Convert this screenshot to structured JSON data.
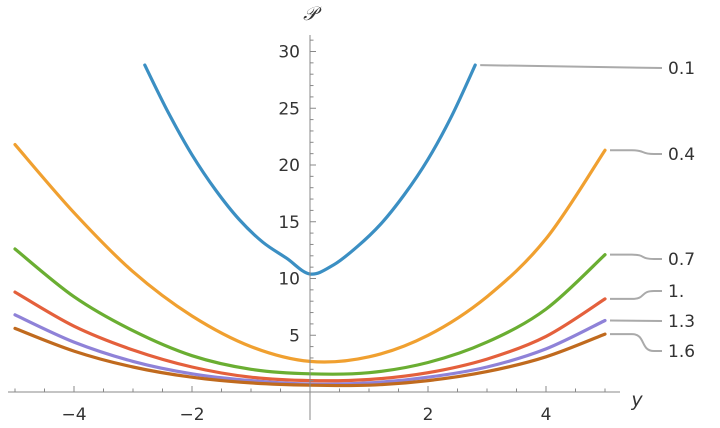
{
  "chart_data": {
    "type": "line",
    "title": "",
    "xlabel": "y",
    "ylabel": "𝒫",
    "xlim": [
      -5,
      5
    ],
    "ylim": [
      0,
      32
    ],
    "xticks": [
      {
        "value": -4,
        "label": "−4"
      },
      {
        "value": -2,
        "label": "−2"
      },
      {
        "value": 2,
        "label": "2"
      },
      {
        "value": 4,
        "label": "4"
      }
    ],
    "yticks": [
      {
        "value": 5,
        "label": "5"
      },
      {
        "value": 10,
        "label": "10"
      },
      {
        "value": 15,
        "label": "15"
      },
      {
        "value": 20,
        "label": "20"
      },
      {
        "value": 25,
        "label": "25"
      },
      {
        "value": 30,
        "label": "30"
      }
    ],
    "series": [
      {
        "name": "0.1",
        "color": "#3B8FC3",
        "x": [
          -2.8,
          -2.4,
          -2.0,
          -1.6,
          -1.2,
          -0.8,
          -0.4,
          0.0,
          0.4,
          0.8,
          1.2,
          1.6,
          2.0,
          2.4,
          2.8
        ],
        "y": [
          28.8,
          24.6,
          20.9,
          17.8,
          15.2,
          13.2,
          11.8,
          10.4,
          11.2,
          12.8,
          14.8,
          17.4,
          20.5,
          24.3,
          28.8
        ]
      },
      {
        "name": "0.4",
        "color": "#F0A030",
        "x": [
          -5,
          -4,
          -3,
          -2,
          -1,
          0,
          1,
          2,
          3,
          4,
          5
        ],
        "y": [
          21.8,
          15.8,
          10.6,
          6.7,
          4.0,
          2.7,
          3.1,
          5.0,
          8.4,
          13.5,
          21.3
        ]
      },
      {
        "name": "0.7",
        "color": "#6AAE32",
        "x": [
          -5,
          -4,
          -3,
          -2,
          -1,
          0,
          1,
          2,
          3,
          4,
          5
        ],
        "y": [
          12.6,
          8.4,
          5.4,
          3.2,
          2.0,
          1.6,
          1.7,
          2.6,
          4.4,
          7.3,
          12.1
        ]
      },
      {
        "name": "1.",
        "color": "#E4603C",
        "x": [
          -5,
          -4,
          -3,
          -2,
          -1,
          0,
          1,
          2,
          3,
          4,
          5
        ],
        "y": [
          8.8,
          5.8,
          3.7,
          2.2,
          1.3,
          1.0,
          1.1,
          1.7,
          2.9,
          4.9,
          8.2
        ]
      },
      {
        "name": "1.3",
        "color": "#8F82D8",
        "x": [
          -5,
          -4,
          -3,
          -2,
          -1,
          0,
          1,
          2,
          3,
          4,
          5
        ],
        "y": [
          6.8,
          4.4,
          2.7,
          1.6,
          1.0,
          0.7,
          0.8,
          1.3,
          2.2,
          3.8,
          6.3
        ]
      },
      {
        "name": "1.6",
        "color": "#C06A1E",
        "x": [
          -5,
          -4,
          -3,
          -2,
          -1,
          0,
          1,
          2,
          3,
          4,
          5
        ],
        "y": [
          5.6,
          3.6,
          2.2,
          1.3,
          0.8,
          0.6,
          0.6,
          1.0,
          1.8,
          3.1,
          5.1
        ]
      }
    ],
    "legend": {
      "placement": "right",
      "connector_color": "#AAAAAA"
    },
    "axis_color": "#888888"
  }
}
